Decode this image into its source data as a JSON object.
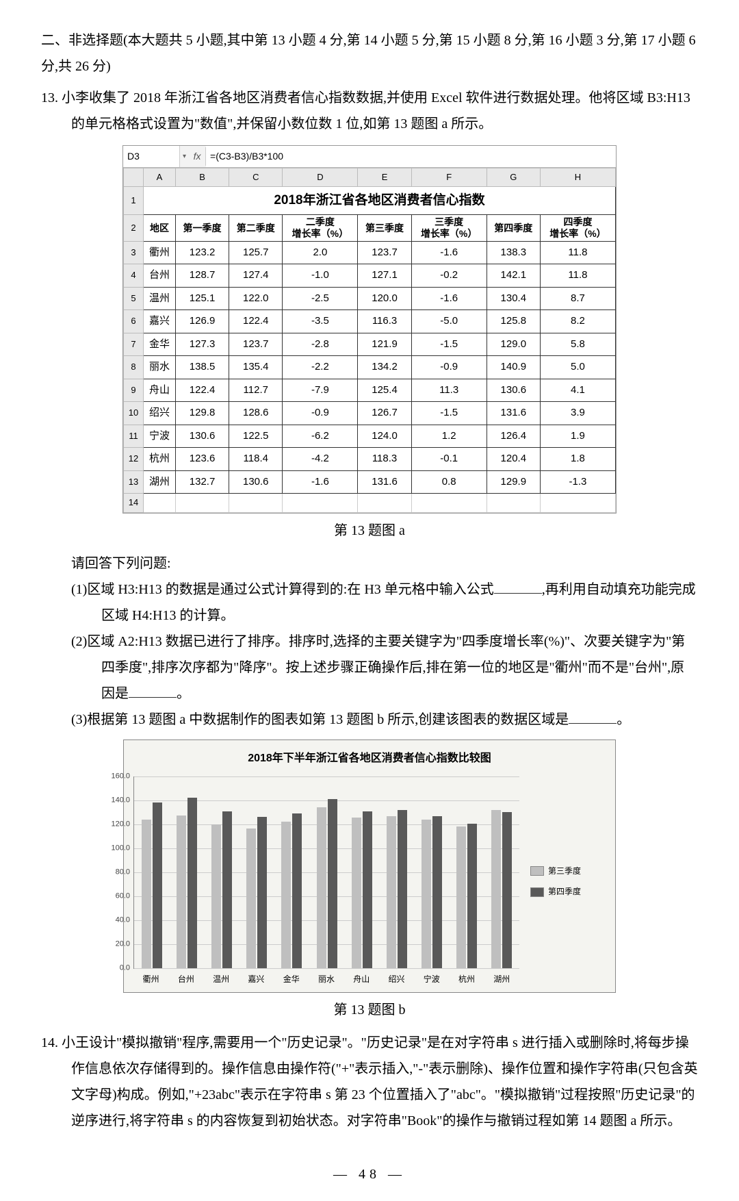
{
  "section_header": "二、非选择题(本大题共 5 小题,其中第 13 小题 4 分,第 14 小题 5 分,第 15 小题 8 分,第 16 小题 3 分,第 17 小题 6 分,共 26 分)",
  "q13_intro_a": "13. 小李收集了 2018 年浙江省各地区消费者信心指数数据,并使用 Excel 软件进行数据处理。他将区域 B3:H13 的单元格格式设置为\"数值\",并保留小数位数 1 位,如第 13 题图 a 所示。",
  "excel": {
    "cellref": "D3",
    "formula": "=(C3-B3)/B3*100",
    "col_letters": [
      "A",
      "B",
      "C",
      "D",
      "E",
      "F",
      "G",
      "H"
    ],
    "title": "2018年浙江省各地区消费者信心指数",
    "headers": [
      "地区",
      "第一季度",
      "第二季度",
      "二季度\n增长率（%）",
      "第三季度",
      "三季度\n增长率（%）",
      "第四季度",
      "四季度\n增长率（%）"
    ],
    "rows": [
      [
        "衢州",
        "123.2",
        "125.7",
        "2.0",
        "123.7",
        "-1.6",
        "138.3",
        "11.8"
      ],
      [
        "台州",
        "128.7",
        "127.4",
        "-1.0",
        "127.1",
        "-0.2",
        "142.1",
        "11.8"
      ],
      [
        "温州",
        "125.1",
        "122.0",
        "-2.5",
        "120.0",
        "-1.6",
        "130.4",
        "8.7"
      ],
      [
        "嘉兴",
        "126.9",
        "122.4",
        "-3.5",
        "116.3",
        "-5.0",
        "125.8",
        "8.2"
      ],
      [
        "金华",
        "127.3",
        "123.7",
        "-2.8",
        "121.9",
        "-1.5",
        "129.0",
        "5.8"
      ],
      [
        "丽水",
        "138.5",
        "135.4",
        "-2.2",
        "134.2",
        "-0.9",
        "140.9",
        "5.0"
      ],
      [
        "舟山",
        "122.4",
        "112.7",
        "-7.9",
        "125.4",
        "11.3",
        "130.6",
        "4.1"
      ],
      [
        "绍兴",
        "129.8",
        "128.6",
        "-0.9",
        "126.7",
        "-1.5",
        "131.6",
        "3.9"
      ],
      [
        "宁波",
        "130.6",
        "122.5",
        "-6.2",
        "124.0",
        "1.2",
        "126.4",
        "1.9"
      ],
      [
        "杭州",
        "123.6",
        "118.4",
        "-4.2",
        "118.3",
        "-0.1",
        "120.4",
        "1.8"
      ],
      [
        "湖州",
        "132.7",
        "130.6",
        "-1.6",
        "131.6",
        "0.8",
        "129.9",
        "-1.3"
      ]
    ]
  },
  "caption_a": "第 13 题图 a",
  "q13_q_intro": "请回答下列问题:",
  "q13_1a": "(1)区域 H3:H13 的数据是通过公式计算得到的:在 H3 单元格中输入公式",
  "q13_1b": ",再利用自动填充功能完成区域 H4:H13 的计算。",
  "q13_2a": "(2)区域 A2:H13 数据已进行了排序。排序时,选择的主要关键字为\"四季度增长率(%)\"、次要关键字为\"第四季度\",排序次序都为\"降序\"。按上述步骤正确操作后,排在第一位的地区是\"衢州\"而不是\"台州\",原因是",
  "q13_2b": "。",
  "q13_3a": "(3)根据第 13 题图 a 中数据制作的图表如第 13 题图 b 所示,创建该图表的数据区域是",
  "q13_3b": "。",
  "chart": {
    "title": "2018年下半年浙江省各地区消费者信心指数比较图",
    "ymax": 160,
    "ystep": 20,
    "categories": [
      "衢州",
      "台州",
      "温州",
      "嘉兴",
      "金华",
      "丽水",
      "舟山",
      "绍兴",
      "宁波",
      "杭州",
      "湖州"
    ],
    "series": [
      {
        "name": "第三季度",
        "color": "#bfbfbf",
        "values": [
          123.7,
          127.1,
          120.0,
          116.3,
          121.9,
          134.2,
          125.4,
          126.7,
          124.0,
          118.3,
          131.6
        ]
      },
      {
        "name": "第四季度",
        "color": "#595959",
        "values": [
          138.3,
          142.1,
          130.4,
          125.8,
          129.0,
          140.9,
          130.6,
          131.6,
          126.4,
          120.4,
          129.9
        ]
      }
    ],
    "background_color": "#f4f4f0",
    "grid_color": "#cccccc",
    "axis_color": "#888888",
    "font_size_title": 16
  },
  "caption_b": "第 13 题图 b",
  "q14": "14. 小王设计\"模拟撤销\"程序,需要用一个\"历史记录\"。\"历史记录\"是在对字符串 s 进行插入或删除时,将每步操作信息依次存储得到的。操作信息由操作符(\"+\"表示插入,\"-\"表示删除)、操作位置和操作字符串(只包含英文字母)构成。例如,\"+23abc\"表示在字符串 s 第 23 个位置插入了\"abc\"。\"模拟撤销\"过程按照\"历史记录\"的逆序进行,将字符串 s 的内容恢复到初始状态。对字符串\"Book\"的操作与撤销过程如第 14 题图 a 所示。",
  "page_num": "— 48 —"
}
